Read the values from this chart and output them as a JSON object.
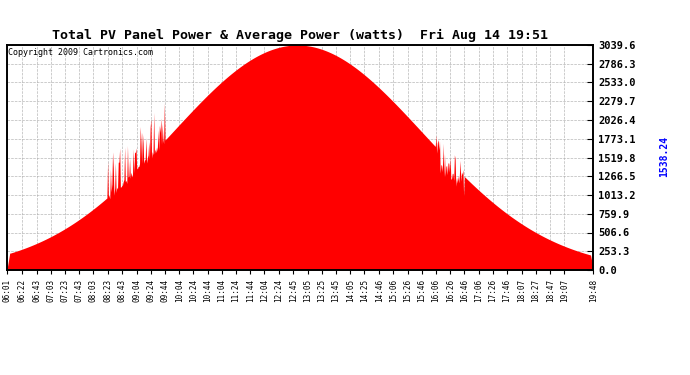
{
  "title": "Total PV Panel Power & Average Power (watts)  Fri Aug 14 19:51",
  "copyright": "Copyright 2009 Cartronics.com",
  "average_power": 1538.24,
  "y_max": 3039.6,
  "y_ticks": [
    0.0,
    253.3,
    506.6,
    759.9,
    1013.2,
    1266.5,
    1519.8,
    1773.1,
    2026.4,
    2279.7,
    2533.0,
    2786.3,
    3039.6
  ],
  "fill_color": "#ff0000",
  "line_color": "#0000ff",
  "background_color": "#ffffff",
  "grid_color": "#b0b0b0",
  "x_labels": [
    "06:01",
    "06:22",
    "06:43",
    "07:03",
    "07:23",
    "07:43",
    "08:03",
    "08:23",
    "08:43",
    "09:04",
    "09:24",
    "09:44",
    "10:04",
    "10:24",
    "10:44",
    "11:04",
    "11:24",
    "11:44",
    "12:04",
    "12:24",
    "12:45",
    "13:05",
    "13:25",
    "13:45",
    "14:05",
    "14:25",
    "14:46",
    "15:06",
    "15:26",
    "15:46",
    "16:06",
    "16:26",
    "16:46",
    "17:06",
    "17:26",
    "17:46",
    "18:07",
    "18:27",
    "18:47",
    "19:07",
    "19:48"
  ],
  "start_time": "06:01",
  "end_time": "19:48"
}
